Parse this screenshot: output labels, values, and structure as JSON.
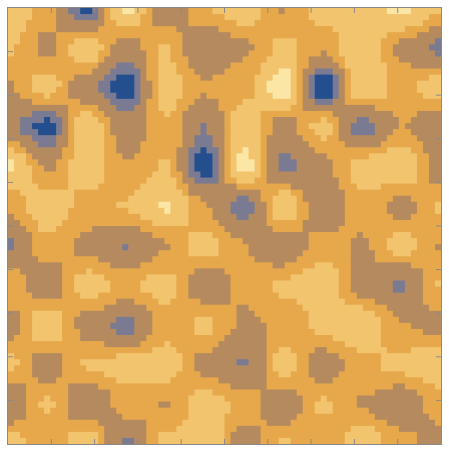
{
  "chart_data": {
    "type": "heatmap",
    "title": "",
    "xlabel": "",
    "ylabel": "",
    "grid": false,
    "legend": "none",
    "tick_labels": false,
    "frame_ticks_per_side": 10,
    "contour_levels": [
      -2.25,
      -1.55,
      -0.35,
      0.45,
      1.5
    ],
    "palette": [
      "#244f8e",
      "#7a7b93",
      "#b58a5f",
      "#e6a84a",
      "#f2c46e",
      "#fbe6a6"
    ],
    "rows": 12,
    "cols": 12,
    "values": [
      [
        1.2,
        0.0,
        -2.6,
        1.8,
        -1.3,
        0.4,
        1.0,
        -0.4,
        0.9,
        0.8,
        1.8,
        0.6
      ],
      [
        0.6,
        -0.6,
        1.2,
        -0.9,
        0.5,
        -1.4,
        -0.5,
        0.7,
        -0.2,
        1.5,
        -0.6,
        -1.8
      ],
      [
        -0.4,
        0.9,
        -1.1,
        -2.8,
        1.0,
        -0.2,
        0.2,
        2.1,
        -3.0,
        1.4,
        0.1,
        1.1
      ],
      [
        -1.3,
        -2.6,
        1.3,
        -1.0,
        0.3,
        -1.6,
        1.1,
        -0.9,
        0.8,
        -2.0,
        -0.3,
        -1.2
      ],
      [
        1.7,
        -0.5,
        1.0,
        -0.3,
        0.5,
        -2.8,
        1.9,
        -1.9,
        -0.6,
        0.9,
        1.4,
        -1.0
      ],
      [
        -0.2,
        1.2,
        0.1,
        0.5,
        1.6,
        -0.3,
        -2.1,
        1.4,
        -1.5,
        0.3,
        -0.7,
        0.6
      ],
      [
        -1.7,
        0.2,
        -0.6,
        -1.6,
        -0.4,
        0.9,
        -0.3,
        -1.3,
        0.2,
        -0.5,
        0.8,
        -0.4
      ],
      [
        0.4,
        -1.2,
        0.9,
        0.3,
        0.8,
        -1.0,
        -0.2,
        0.6,
        1.1,
        -0.8,
        -1.7,
        0.5
      ],
      [
        -0.8,
        1.3,
        -0.7,
        -1.9,
        0.0,
        0.6,
        -0.5,
        -0.2,
        0.7,
        1.3,
        -0.3,
        -0.6
      ],
      [
        0.7,
        -0.9,
        0.5,
        0.8,
        1.0,
        -0.7,
        -1.6,
        0.9,
        -0.9,
        0.2,
        0.7,
        1.2
      ],
      [
        -1.4,
        0.6,
        -1.5,
        0.1,
        -0.4,
        0.9,
        0.3,
        -1.1,
        0.6,
        -0.4,
        -1.2,
        0.1
      ],
      [
        0.9,
        -0.3,
        1.2,
        -1.8,
        0.7,
        1.4,
        -1.0,
        0.5,
        -0.2,
        1.1,
        0.0,
        -0.8
      ]
    ]
  },
  "colors": {
    "frame": "#8a8a8a",
    "tick": "#8a8a8a",
    "background": "#ffffff"
  }
}
